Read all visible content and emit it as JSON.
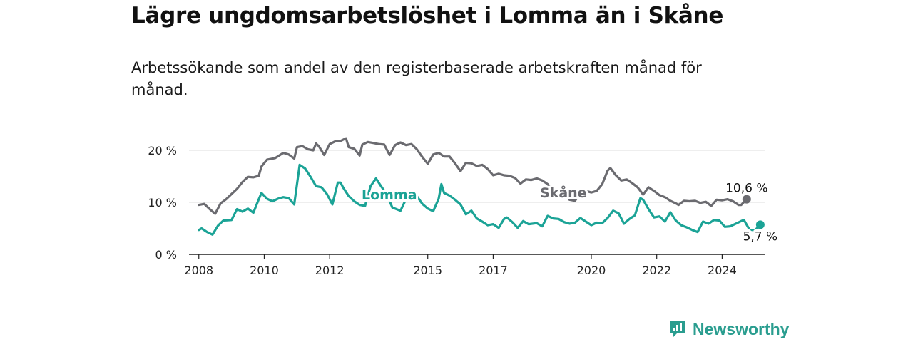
{
  "title": "Lägre ungdomsarbetslöshet i Lomma än i Skåne",
  "subtitle": "Arbetssökande som andel av den registerbaserade arbetskraften månad för månad.",
  "brand": {
    "name": "Newsworthy",
    "icon": "newsworthy-logo-icon",
    "color": "#2a9d8f"
  },
  "chart_data": {
    "type": "line",
    "title": "Lägre ungdomsarbetslöshet i Lomma än i Skåne",
    "xlabel": "",
    "ylabel": "",
    "ylim": [
      0,
      20
    ],
    "xlim": [
      "2008-01",
      "2024-12"
    ],
    "yticks": [
      0,
      10,
      20
    ],
    "ytick_labels": [
      "0 %",
      "10 %",
      "20 %"
    ],
    "xticks": [
      "2008",
      "2010",
      "2012",
      "2015",
      "2017",
      "2020",
      "2022",
      "2024"
    ],
    "grid": true,
    "legend": "inline labels",
    "series": [
      {
        "name": "Skåne",
        "color": "#6b6b70",
        "end_label": "10,6 %",
        "values": [
          [
            "2008-01",
            9.5
          ],
          [
            "2008-03",
            9.7
          ],
          [
            "2008-05",
            8.7
          ],
          [
            "2008-07",
            7.8
          ],
          [
            "2008-09",
            9.8
          ],
          [
            "2008-11",
            10.6
          ],
          [
            "2009-01",
            11.6
          ],
          [
            "2009-03",
            12.6
          ],
          [
            "2009-05",
            13.9
          ],
          [
            "2009-07",
            14.9
          ],
          [
            "2009-09",
            14.8
          ],
          [
            "2009-11",
            15.1
          ],
          [
            "2009-12",
            16.9
          ],
          [
            "2010-02",
            18.2
          ],
          [
            "2010-05",
            18.5
          ],
          [
            "2010-08",
            19.5
          ],
          [
            "2010-10",
            19.2
          ],
          [
            "2010-12",
            18.4
          ],
          [
            "2011-01",
            20.6
          ],
          [
            "2011-03",
            20.8
          ],
          [
            "2011-05",
            20.2
          ],
          [
            "2011-07",
            20.0
          ],
          [
            "2011-08",
            21.3
          ],
          [
            "2011-09",
            20.8
          ],
          [
            "2011-11",
            19.1
          ],
          [
            "2012-01",
            21.2
          ],
          [
            "2012-03",
            21.7
          ],
          [
            "2012-05",
            21.8
          ],
          [
            "2012-07",
            22.3
          ],
          [
            "2012-08",
            20.6
          ],
          [
            "2012-10",
            20.3
          ],
          [
            "2012-12",
            19.0
          ],
          [
            "2013-01",
            21.1
          ],
          [
            "2013-03",
            21.6
          ],
          [
            "2013-05",
            21.4
          ],
          [
            "2013-07",
            21.2
          ],
          [
            "2013-09",
            21.1
          ],
          [
            "2013-11",
            19.1
          ],
          [
            "2014-01",
            21.0
          ],
          [
            "2014-03",
            21.5
          ],
          [
            "2014-05",
            21.0
          ],
          [
            "2014-07",
            21.2
          ],
          [
            "2014-09",
            20.2
          ],
          [
            "2014-11",
            18.7
          ],
          [
            "2015-01",
            17.4
          ],
          [
            "2015-03",
            19.2
          ],
          [
            "2015-05",
            19.5
          ],
          [
            "2015-07",
            18.8
          ],
          [
            "2015-09",
            18.8
          ],
          [
            "2015-11",
            17.5
          ],
          [
            "2016-01",
            16.0
          ],
          [
            "2016-03",
            17.6
          ],
          [
            "2016-05",
            17.5
          ],
          [
            "2016-07",
            17.0
          ],
          [
            "2016-09",
            17.2
          ],
          [
            "2016-11",
            16.4
          ],
          [
            "2017-01",
            15.2
          ],
          [
            "2017-03",
            15.5
          ],
          [
            "2017-05",
            15.2
          ],
          [
            "2017-07",
            15.1
          ],
          [
            "2017-09",
            14.7
          ],
          [
            "2017-11",
            13.6
          ],
          [
            "2018-01",
            14.4
          ],
          [
            "2018-03",
            14.3
          ],
          [
            "2018-05",
            14.6
          ],
          [
            "2018-07",
            14.2
          ],
          [
            "2018-09",
            13.5
          ],
          [
            "2018-11",
            12.3
          ],
          [
            "2019-01",
            11.9
          ],
          [
            "2019-03",
            12.4
          ],
          [
            "2019-05",
            10.5
          ],
          [
            "2019-07",
            10.3
          ],
          [
            "2019-09",
            11.8
          ],
          [
            "2019-11",
            12.2
          ],
          [
            "2020-01",
            11.9
          ],
          [
            "2020-03",
            12.2
          ],
          [
            "2020-05",
            13.5
          ],
          [
            "2020-07",
            16.1
          ],
          [
            "2020-08",
            16.6
          ],
          [
            "2020-10",
            15.2
          ],
          [
            "2020-12",
            14.2
          ],
          [
            "2021-02",
            14.4
          ],
          [
            "2021-04",
            13.7
          ],
          [
            "2021-06",
            12.9
          ],
          [
            "2021-08",
            11.5
          ],
          [
            "2021-10",
            12.9
          ],
          [
            "2021-12",
            12.2
          ],
          [
            "2022-02",
            11.4
          ],
          [
            "2022-04",
            11.0
          ],
          [
            "2022-06",
            10.3
          ],
          [
            "2022-08",
            9.8
          ],
          [
            "2022-09",
            9.5
          ],
          [
            "2022-11",
            10.3
          ],
          [
            "2023-01",
            10.2
          ],
          [
            "2023-03",
            10.3
          ],
          [
            "2023-05",
            9.9
          ],
          [
            "2023-07",
            10.1
          ],
          [
            "2023-09",
            9.3
          ],
          [
            "2023-11",
            10.5
          ],
          [
            "2024-01",
            10.4
          ],
          [
            "2024-03",
            10.6
          ],
          [
            "2024-05",
            10.2
          ],
          [
            "2024-07",
            9.5
          ],
          [
            "2024-08",
            9.5
          ],
          [
            "2024-10",
            10.6
          ]
        ]
      },
      {
        "name": "Lomma",
        "color": "#1ba396",
        "end_label": "5,7 %",
        "values": [
          [
            "2008-01",
            4.7
          ],
          [
            "2008-02",
            5.0
          ],
          [
            "2008-04",
            4.3
          ],
          [
            "2008-06",
            3.8
          ],
          [
            "2008-08",
            5.5
          ],
          [
            "2008-10",
            6.5
          ],
          [
            "2009-01",
            6.6
          ],
          [
            "2009-03",
            8.7
          ],
          [
            "2009-05",
            8.2
          ],
          [
            "2009-07",
            8.8
          ],
          [
            "2009-09",
            8.0
          ],
          [
            "2009-11",
            10.6
          ],
          [
            "2009-12",
            11.8
          ],
          [
            "2010-02",
            10.7
          ],
          [
            "2010-04",
            10.2
          ],
          [
            "2010-06",
            10.7
          ],
          [
            "2010-08",
            11.0
          ],
          [
            "2010-10",
            10.8
          ],
          [
            "2010-12",
            9.6
          ],
          [
            "2011-02",
            17.2
          ],
          [
            "2011-04",
            16.5
          ],
          [
            "2011-06",
            14.9
          ],
          [
            "2011-08",
            13.1
          ],
          [
            "2011-10",
            12.9
          ],
          [
            "2011-12",
            11.6
          ],
          [
            "2012-02",
            9.6
          ],
          [
            "2012-04",
            13.8
          ],
          [
            "2012-05",
            13.8
          ],
          [
            "2012-06",
            12.8
          ],
          [
            "2012-08",
            11.2
          ],
          [
            "2012-10",
            10.2
          ],
          [
            "2012-12",
            9.5
          ],
          [
            "2013-02",
            9.3
          ],
          [
            "2013-04",
            13.1
          ],
          [
            "2013-06",
            14.6
          ],
          [
            "2013-08",
            13.0
          ],
          [
            "2013-10",
            11.5
          ],
          [
            "2013-12",
            9.0
          ],
          [
            "2014-03",
            8.4
          ],
          [
            "2014-05",
            10.6
          ],
          [
            "2014-07",
            11.4
          ],
          [
            "2014-09",
            11.2
          ],
          [
            "2014-11",
            9.7
          ],
          [
            "2015-01",
            8.8
          ],
          [
            "2015-03",
            8.3
          ],
          [
            "2015-05",
            10.7
          ],
          [
            "2015-06",
            13.5
          ],
          [
            "2015-07",
            11.8
          ],
          [
            "2015-09",
            11.3
          ],
          [
            "2015-11",
            10.5
          ],
          [
            "2016-01",
            9.6
          ],
          [
            "2016-03",
            7.7
          ],
          [
            "2016-05",
            8.4
          ],
          [
            "2016-07",
            6.9
          ],
          [
            "2016-09",
            6.3
          ],
          [
            "2016-11",
            5.6
          ],
          [
            "2017-01",
            5.8
          ],
          [
            "2017-03",
            5.1
          ],
          [
            "2017-05",
            6.8
          ],
          [
            "2017-06",
            7.1
          ],
          [
            "2017-08",
            6.2
          ],
          [
            "2017-10",
            5.1
          ],
          [
            "2017-12",
            6.4
          ],
          [
            "2018-02",
            5.8
          ],
          [
            "2018-05",
            6.0
          ],
          [
            "2018-07",
            5.4
          ],
          [
            "2018-09",
            7.4
          ],
          [
            "2018-11",
            6.9
          ],
          [
            "2019-01",
            6.8
          ],
          [
            "2019-03",
            6.2
          ],
          [
            "2019-05",
            5.9
          ],
          [
            "2019-07",
            6.1
          ],
          [
            "2019-09",
            7.0
          ],
          [
            "2019-11",
            6.3
          ],
          [
            "2020-01",
            5.6
          ],
          [
            "2020-03",
            6.1
          ],
          [
            "2020-05",
            6.0
          ],
          [
            "2020-07",
            7.0
          ],
          [
            "2020-09",
            8.4
          ],
          [
            "2020-11",
            7.9
          ],
          [
            "2021-01",
            5.9
          ],
          [
            "2021-03",
            6.8
          ],
          [
            "2021-05",
            7.5
          ],
          [
            "2021-07",
            10.8
          ],
          [
            "2021-08",
            10.5
          ],
          [
            "2021-10",
            8.7
          ],
          [
            "2021-12",
            7.1
          ],
          [
            "2022-02",
            7.3
          ],
          [
            "2022-04",
            6.3
          ],
          [
            "2022-06",
            8.1
          ],
          [
            "2022-08",
            6.5
          ],
          [
            "2022-10",
            5.6
          ],
          [
            "2022-12",
            5.2
          ],
          [
            "2023-02",
            4.7
          ],
          [
            "2023-04",
            4.3
          ],
          [
            "2023-06",
            6.3
          ],
          [
            "2023-08",
            5.9
          ],
          [
            "2023-10",
            6.6
          ],
          [
            "2023-12",
            6.5
          ],
          [
            "2024-02",
            5.3
          ],
          [
            "2024-04",
            5.4
          ],
          [
            "2024-06",
            5.9
          ],
          [
            "2024-08",
            6.4
          ],
          [
            "2024-09",
            6.6
          ],
          [
            "2024-11",
            4.8
          ],
          [
            "2025-01",
            4.6
          ],
          [
            "2025-03",
            5.7
          ]
        ]
      }
    ]
  }
}
